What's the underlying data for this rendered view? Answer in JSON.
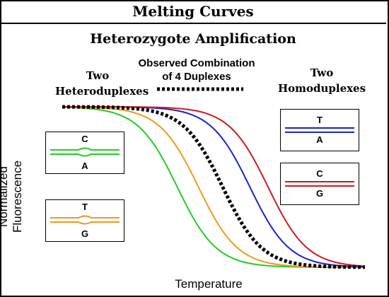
{
  "header": {
    "title": "Melting Curves"
  },
  "figure": {
    "subtitle": "Heterozygote Amplification",
    "labels": {
      "hetero_line1": "Two",
      "hetero_line2": "Heteroduplexes",
      "observed_line1": "Observed Combination",
      "observed_line2": "of 4 Duplexes",
      "homo_line1": "Two",
      "homo_line2": "Homoduplexes"
    },
    "axes": {
      "x_label": "Temperature",
      "y_label": "Normalized Fluorescence"
    },
    "insets": [
      {
        "top": "C",
        "bottom": "A",
        "color": "#22cc22",
        "mismatch": true
      },
      {
        "top": "T",
        "bottom": "G",
        "color": "#ee9a1a",
        "mismatch": true
      },
      {
        "top": "T",
        "bottom": "A",
        "color": "#1a22cc",
        "mismatch": false
      },
      {
        "top": "C",
        "bottom": "G",
        "color": "#cc1a1a",
        "mismatch": false
      }
    ],
    "curves": [
      {
        "name": "C/A",
        "color": "#22cc22",
        "midpoint": 0.38
      },
      {
        "name": "T/G",
        "color": "#ee9a1a",
        "midpoint": 0.45
      },
      {
        "name": "T/A",
        "color": "#1a22cc",
        "midpoint": 0.62
      },
      {
        "name": "C/G",
        "color": "#cc1a1a",
        "midpoint": 0.68
      },
      {
        "name": "observed",
        "color": "#000000",
        "midpoint": 0.53,
        "dashed": true
      }
    ]
  }
}
